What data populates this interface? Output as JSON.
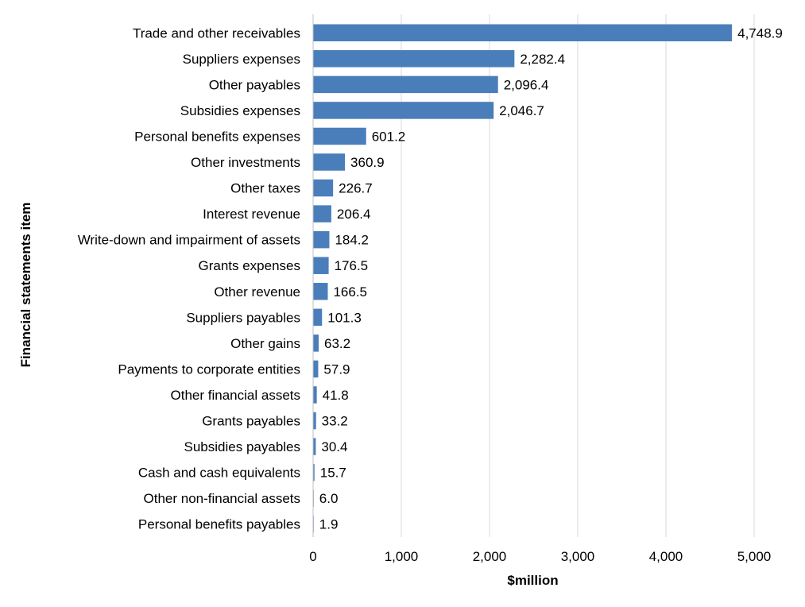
{
  "chart_data": {
    "type": "bar",
    "orientation": "horizontal",
    "title": "",
    "xlabel": "$million",
    "ylabel": "Financial statements item",
    "xlim": [
      0,
      5000
    ],
    "xticks": [
      0,
      1000,
      2000,
      3000,
      4000,
      5000
    ],
    "xtick_labels": [
      "0",
      "1,000",
      "2,000",
      "3,000",
      "4,000",
      "5,000"
    ],
    "grid": "vertical",
    "legend": "none",
    "bar_color": "#4a7ebb",
    "categories": [
      "Trade and other receivables",
      "Suppliers expenses",
      "Other payables",
      "Subsidies expenses",
      "Personal benefits expenses",
      "Other investments",
      "Other taxes",
      "Interest revenue",
      "Write-down and impairment of assets",
      "Grants expenses",
      "Other revenue",
      "Suppliers payables",
      "Other gains",
      "Payments to corporate entities",
      "Other financial assets",
      "Grants payables",
      "Subsidies payables",
      "Cash and cash equivalents",
      "Other non-financial assets",
      "Personal benefits payables"
    ],
    "values": [
      4748.9,
      2282.4,
      2096.4,
      2046.7,
      601.2,
      360.9,
      226.7,
      206.4,
      184.2,
      176.5,
      166.5,
      101.3,
      63.2,
      57.9,
      41.8,
      33.2,
      30.4,
      15.7,
      6.0,
      1.9
    ],
    "value_labels": [
      "4,748.9",
      "2,282.4",
      "2,096.4",
      "2,046.7",
      "601.2",
      "360.9",
      "226.7",
      "206.4",
      "184.2",
      "176.5",
      "166.5",
      "101.3",
      "63.2",
      "57.9",
      "41.8",
      "33.2",
      "30.4",
      "15.7",
      "6.0",
      "1.9"
    ]
  }
}
